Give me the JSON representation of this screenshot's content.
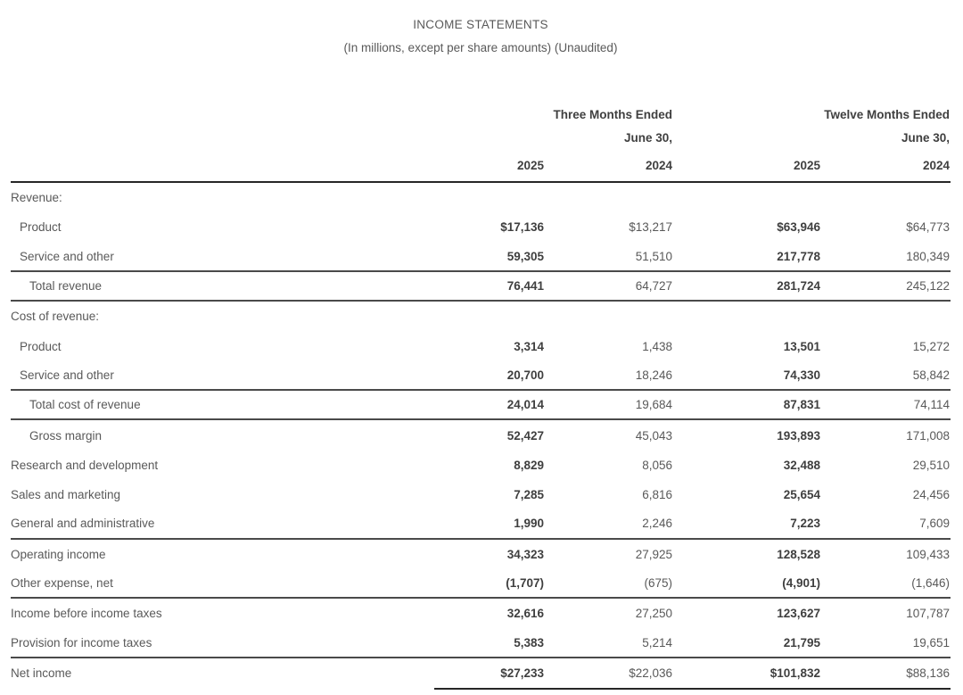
{
  "header": {
    "title": "INCOME STATEMENTS",
    "subtitle": "(In millions, except per share amounts) (Unaudited)"
  },
  "colors": {
    "background": "#ffffff",
    "text_muted": "#595959",
    "text_strong": "#3f3f3f",
    "rule": "#4a4a4a",
    "rule_dark": "#262626"
  },
  "table": {
    "column_groups": [
      {
        "label": "Three Months Ended",
        "sublabel": "June 30,"
      },
      {
        "label": "Twelve Months Ended",
        "sublabel": "June 30,"
      }
    ],
    "year_columns": [
      "2025",
      "2024",
      "2025",
      "2024"
    ],
    "bold_columns": [
      0,
      2
    ],
    "rows": [
      {
        "label": "Revenue:",
        "indent": 0,
        "values": [
          "",
          "",
          "",
          ""
        ]
      },
      {
        "label": "Product",
        "indent": 1,
        "values": [
          "$17,136",
          "$13,217",
          "$63,946",
          "$64,773"
        ]
      },
      {
        "label": "Service and other",
        "indent": 1,
        "values": [
          "59,305",
          "51,510",
          "217,778",
          "180,349"
        ],
        "rule_after": true
      },
      {
        "label": "Total revenue",
        "indent": 2,
        "values": [
          "76,441",
          "64,727",
          "281,724",
          "245,122"
        ],
        "rule_after": true
      },
      {
        "label": "Cost of revenue:",
        "indent": 0,
        "values": [
          "",
          "",
          "",
          ""
        ]
      },
      {
        "label": "Product",
        "indent": 1,
        "values": [
          "3,314",
          "1,438",
          "13,501",
          "15,272"
        ]
      },
      {
        "label": "Service and other",
        "indent": 1,
        "values": [
          "20,700",
          "18,246",
          "74,330",
          "58,842"
        ],
        "rule_after": true
      },
      {
        "label": "Total cost of revenue",
        "indent": 2,
        "values": [
          "24,014",
          "19,684",
          "87,831",
          "74,114"
        ],
        "rule_after": true
      },
      {
        "label": "Gross margin",
        "indent": 2,
        "values": [
          "52,427",
          "45,043",
          "193,893",
          "171,008"
        ]
      },
      {
        "label": "Research and development",
        "indent": 0,
        "values": [
          "8,829",
          "8,056",
          "32,488",
          "29,510"
        ]
      },
      {
        "label": "Sales and marketing",
        "indent": 0,
        "values": [
          "7,285",
          "6,816",
          "25,654",
          "24,456"
        ]
      },
      {
        "label": "General and administrative",
        "indent": 0,
        "values": [
          "1,990",
          "2,246",
          "7,223",
          "7,609"
        ],
        "rule_after": true
      },
      {
        "label": "Operating income",
        "indent": 0,
        "values": [
          "34,323",
          "27,925",
          "128,528",
          "109,433"
        ]
      },
      {
        "label": "Other expense, net",
        "indent": 0,
        "values": [
          "(1,707)",
          "(675)",
          "(4,901)",
          "(1,646)"
        ],
        "rule_after": true
      },
      {
        "label": "Income before income taxes",
        "indent": 0,
        "values": [
          "32,616",
          "27,250",
          "123,627",
          "107,787"
        ]
      },
      {
        "label": "Provision for income taxes",
        "indent": 0,
        "values": [
          "5,383",
          "5,214",
          "21,795",
          "19,651"
        ],
        "rule_after": true
      },
      {
        "label": "Net income",
        "indent": 0,
        "values": [
          "$27,233",
          "$22,036",
          "$101,832",
          "$88,136"
        ],
        "rule_after": "partial"
      }
    ]
  }
}
